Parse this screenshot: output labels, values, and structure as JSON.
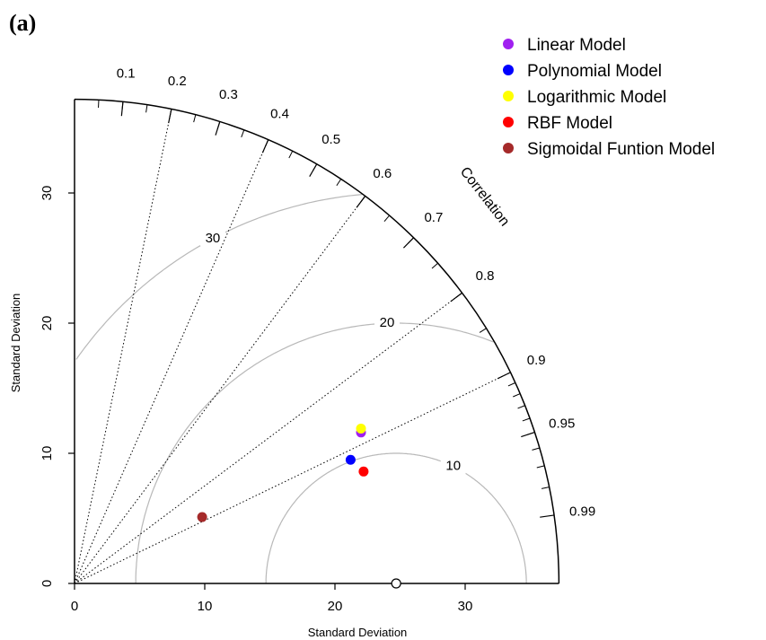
{
  "panel_label": "(a)",
  "chart_data": {
    "type": "taylor",
    "xlabel": "Standard Deviation",
    "ylabel": "Standard Deviation",
    "correlation_label": "Correlation",
    "sd_max": 37.2,
    "sd_ticks": [
      "0",
      "10",
      "20",
      "30"
    ],
    "correlation_ticks": [
      "0.1",
      "0.2",
      "0.3",
      "0.4",
      "0.5",
      "0.6",
      "0.7",
      "0.8",
      "0.9",
      "0.95",
      "0.99"
    ],
    "rms_contours": [
      "10",
      "20",
      "30"
    ],
    "reference": {
      "sd": 24.7
    },
    "series": [
      {
        "name": "Linear Model",
        "color": "#a020f0",
        "x": 22.0,
        "y": 11.6
      },
      {
        "name": "Polynomial Model",
        "color": "#0000ff",
        "x": 21.2,
        "y": 9.5
      },
      {
        "name": "Logarithmic Model",
        "color": "#ffff00",
        "x": 22.0,
        "y": 11.9
      },
      {
        "name": "RBF Model",
        "color": "#ff0000",
        "x": 22.2,
        "y": 8.6
      },
      {
        "name": "Sigmoidal Funtion Model",
        "color": "#a52a2a",
        "x": 9.8,
        "y": 5.1
      }
    ]
  }
}
